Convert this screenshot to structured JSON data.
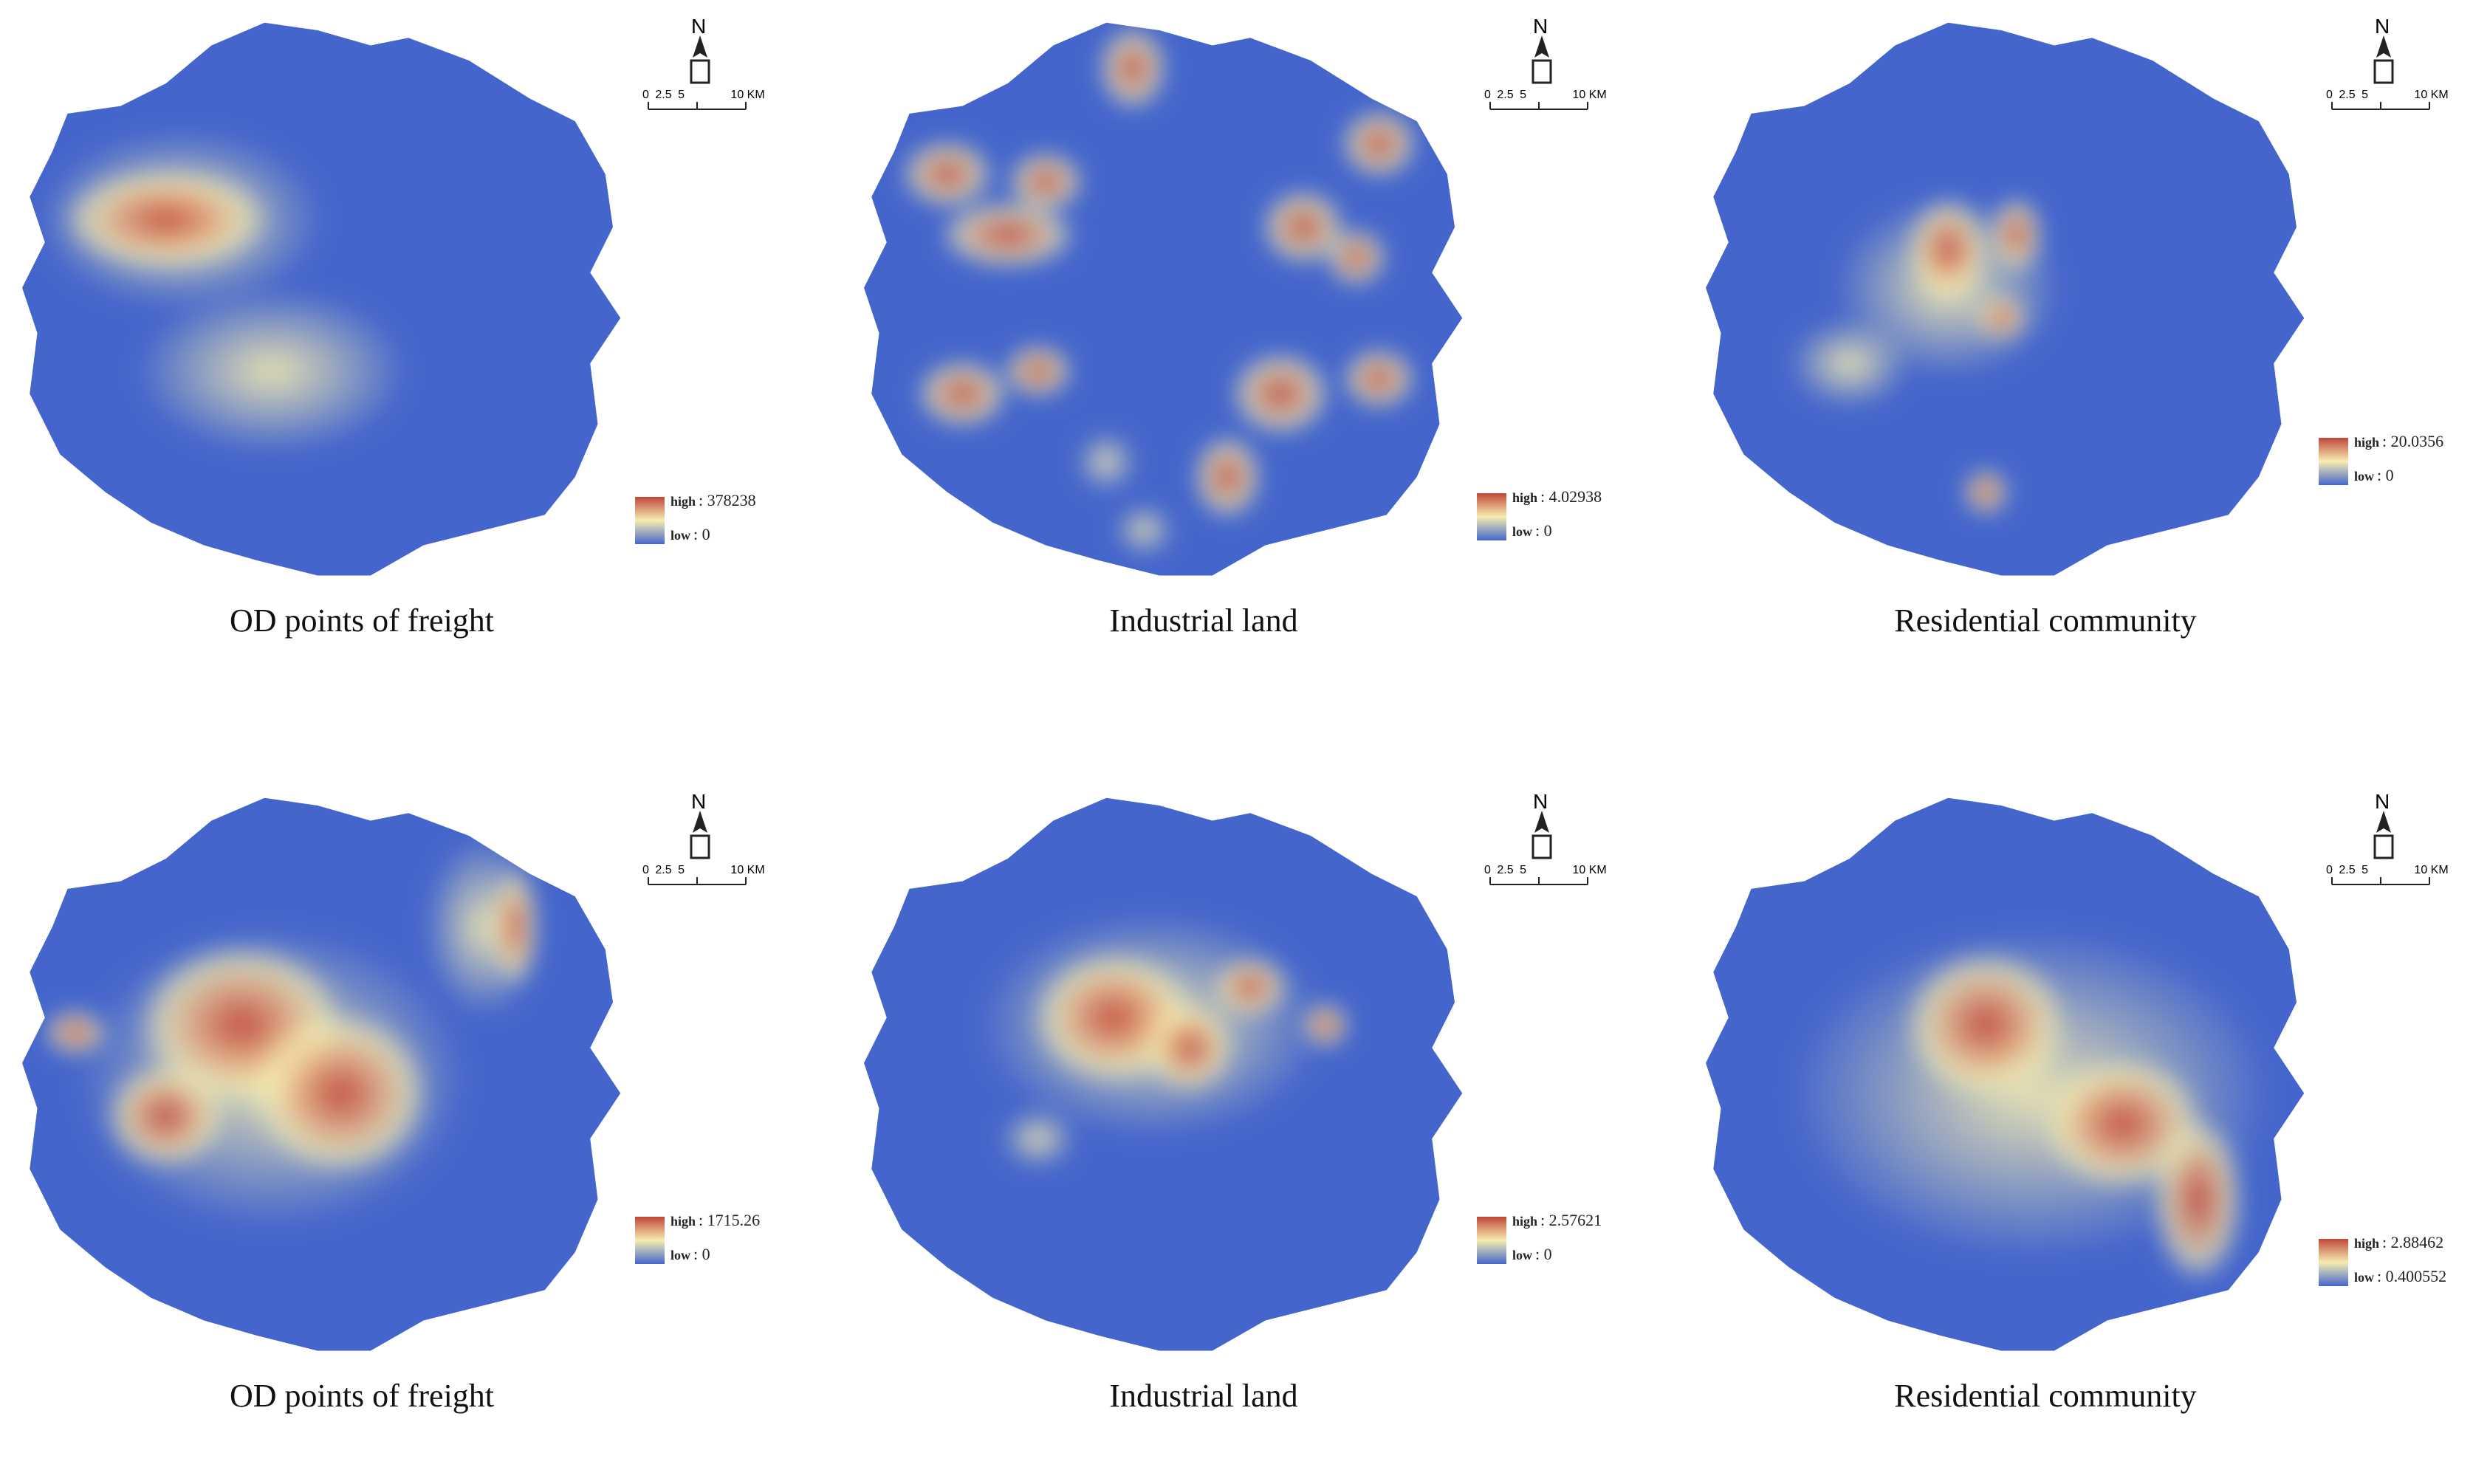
{
  "north_label": "N",
  "scale": {
    "labels": [
      "0",
      "2.5",
      "5",
      "10 KM"
    ]
  },
  "colors": {
    "low": "#4466cc",
    "mid": "#f6edb0",
    "high": "#c0463a",
    "background": "#ffffff"
  },
  "legend_labels": {
    "high": "high",
    "low": "low"
  },
  "panels": [
    {
      "caption": "OD points of freight",
      "legend_high": "378238",
      "legend_low": "0"
    },
    {
      "caption": "Industrial land",
      "legend_high": "4.02938",
      "legend_low": "0"
    },
    {
      "caption": "Residential community",
      "legend_high": "20.0356",
      "legend_low": "0"
    },
    {
      "caption": "OD points of freight",
      "legend_high": "1715.26",
      "legend_low": "0"
    },
    {
      "caption": "Industrial land",
      "legend_high": "2.57621",
      "legend_low": "0"
    },
    {
      "caption": "Residential community",
      "legend_high": "2.88462",
      "legend_low": "0.400552"
    }
  ]
}
